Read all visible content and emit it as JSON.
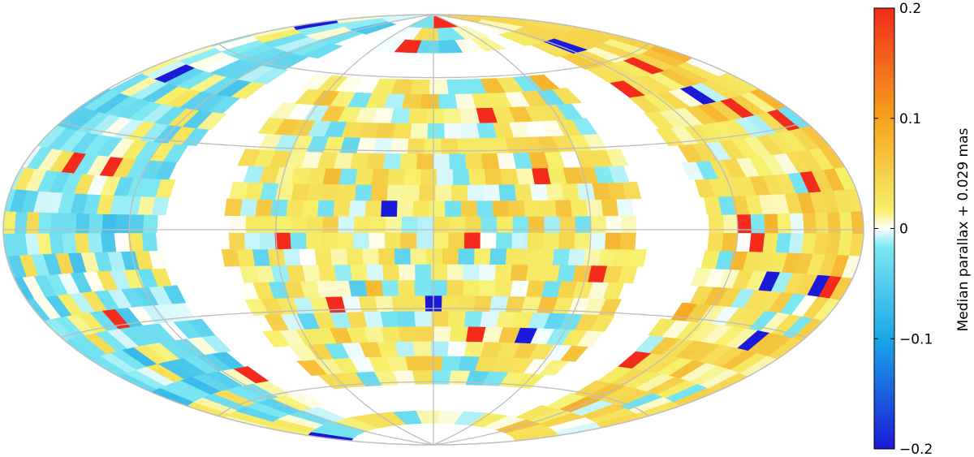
{
  "chart_data": {
    "type": "heatmap",
    "projection": "Hammer-Aitoff (full sky, equal-area)",
    "title": "",
    "grid": true,
    "grid_color": "#bdbdbd",
    "colorbar": {
      "label": "Median parallax + 0.029 mas",
      "vmin": -0.2,
      "vmax": 0.2,
      "ticks": [
        0.2,
        0.1,
        0,
        -0.1,
        -0.2
      ],
      "tick_labels": [
        "0.2",
        "0.1",
        "0",
        "−0.1",
        "−0.2"
      ],
      "colormap": "jet-like diverging, white at 0",
      "colors": {
        "min": "#1a1ad8",
        "low": "#1aa6e6",
        "near_zero_neg": "#7ee8f2",
        "zero": "#ffffff",
        "near_zero_pos": "#f6f06a",
        "high": "#f6a21c",
        "max": "#f22b1c"
      }
    },
    "regions": [
      {
        "name": "north polar cap (outer upper band)",
        "median_level": "around 0, mostly −0.05 to +0.05"
      },
      {
        "name": "central block",
        "median_level": "slightly positive, many +0.05 pixels"
      },
      {
        "name": "right lobe",
        "median_level": "positive, up to +0.1"
      },
      {
        "name": "left lobe",
        "median_level": "around 0 to −0.05"
      },
      {
        "name": "masked regions (empty)",
        "median_level": "no data"
      }
    ]
  }
}
